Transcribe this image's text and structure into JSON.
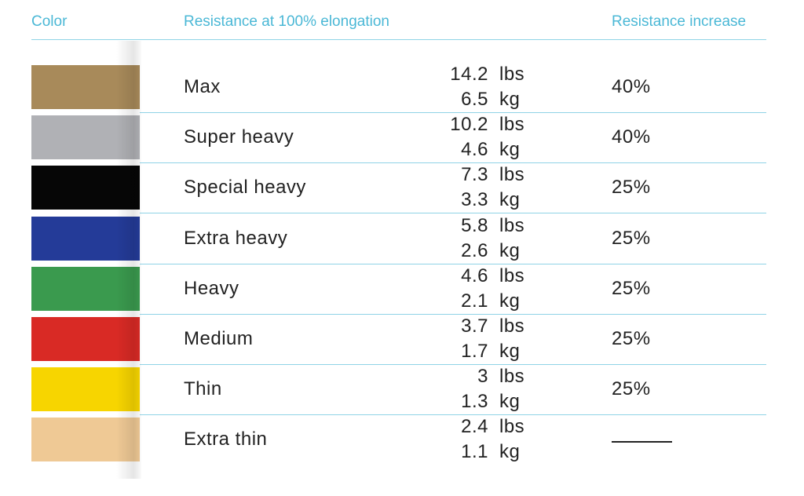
{
  "header": {
    "color": "Color",
    "resistance": "Resistance at 100% elongation",
    "increase": "Resistance increase"
  },
  "units": [
    "lbs",
    "kg"
  ],
  "rows": [
    {
      "color": "#a88a5a",
      "name": "Max",
      "lbs": 14.2,
      "kg": 6.5,
      "increase": "40%"
    },
    {
      "color": "#b0b1b5",
      "name": "Super heavy",
      "lbs": 10.2,
      "kg": 4.6,
      "increase": "40%"
    },
    {
      "color": "#060606",
      "name": "Special heavy",
      "lbs": 7.3,
      "kg": 3.3,
      "increase": "25%"
    },
    {
      "color": "#243b98",
      "name": "Extra heavy",
      "lbs": 5.8,
      "kg": 2.6,
      "increase": "25%"
    },
    {
      "color": "#3a9a4e",
      "name": "Heavy",
      "lbs": 4.6,
      "kg": 2.1,
      "increase": "25%"
    },
    {
      "color": "#d92a25",
      "name": "Medium",
      "lbs": 3.7,
      "kg": 1.7,
      "increase": "25%"
    },
    {
      "color": "#f7d500",
      "name": "Thin",
      "lbs": 3,
      "kg": 1.3,
      "increase": "25%"
    },
    {
      "color": "#efc995",
      "name": "Extra thin",
      "lbs": 2.4,
      "kg": 1.1,
      "increase": null
    }
  ]
}
